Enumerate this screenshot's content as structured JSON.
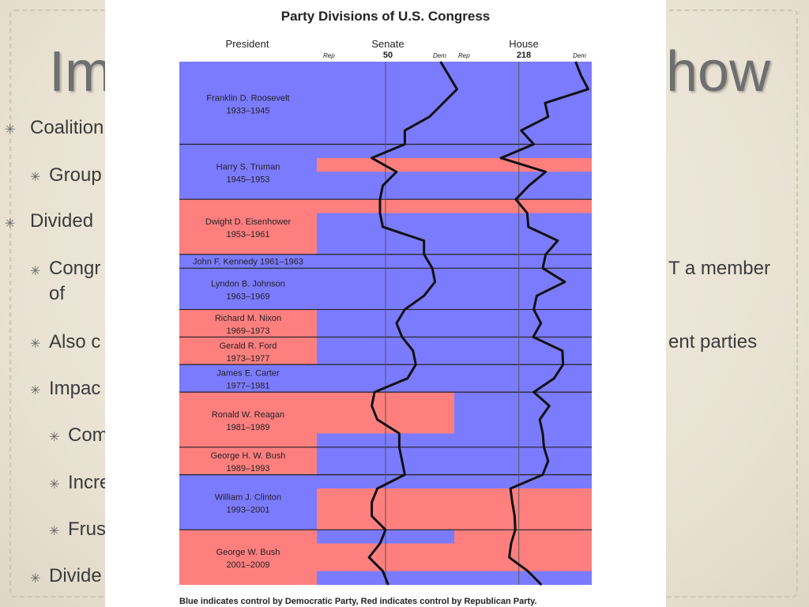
{
  "slide": {
    "title_left": "Im",
    "title_right": "how",
    "bullets": [
      {
        "text": "Coalition",
        "level": 1
      },
      {
        "text": "Group",
        "level": 2
      },
      {
        "text": "Divided",
        "level": 1
      },
      {
        "text": "Congr",
        "level": 2,
        "continuation": "of",
        "right_fragment": "T a member"
      },
      {
        "text": "Also c",
        "level": 2,
        "right_fragment": "ent parties"
      },
      {
        "text": "Impac",
        "level": 2
      },
      {
        "text": "Com",
        "level": 3
      },
      {
        "text": "Incre",
        "level": 3
      },
      {
        "text": "Frus",
        "level": 3
      },
      {
        "text": "Divide",
        "level": 2
      }
    ]
  },
  "chart_data": {
    "type": "table",
    "title": "Party Divisions of U.S. Congress",
    "headers": {
      "president": "President",
      "senate": "Senate",
      "house": "House",
      "senate_mid": "50",
      "house_mid": "218",
      "rep_label": "Rep",
      "dem_label": "Dem"
    },
    "colors": {
      "democratic": "#7b7bff",
      "republican": "#ff7f7f"
    },
    "presidents": [
      {
        "name": "Franklin D. Roosevelt",
        "years": "1933–1945",
        "party": "Dem"
      },
      {
        "name": "Harry S. Truman",
        "years": "1945–1953",
        "party": "Dem"
      },
      {
        "name": "Dwight D. Eisenhower",
        "years": "1953–1961",
        "party": "Rep"
      },
      {
        "name": "John F. Kennedy 1961–1963",
        "years": "",
        "party": "Dem"
      },
      {
        "name": "Lyndon B. Johnson",
        "years": "1963–1969",
        "party": "Dem"
      },
      {
        "name": "Richard M. Nixon",
        "years": "1969–1973",
        "party": "Rep"
      },
      {
        "name": "Gerald R. Ford",
        "years": "1973–1977",
        "party": "Rep"
      },
      {
        "name": "James E. Carter",
        "years": "1977–1981",
        "party": "Dem"
      },
      {
        "name": "Ronald W. Reagan",
        "years": "1981–1989",
        "party": "Rep"
      },
      {
        "name": "George H. W. Bush",
        "years": "1989–1993",
        "party": "Rep"
      },
      {
        "name": "William J. Clinton",
        "years": "1993–2001",
        "party": "Dem"
      },
      {
        "name": "George W. Bush",
        "years": "2001–2009",
        "party": "Rep"
      }
    ],
    "senate_control": [
      [
        "1933",
        "1947",
        "Dem"
      ],
      [
        "1947",
        "1949",
        "Rep"
      ],
      [
        "1949",
        "1953",
        "Dem"
      ],
      [
        "1953",
        "1955",
        "Rep"
      ],
      [
        "1955",
        "1981",
        "Dem"
      ],
      [
        "1981",
        "1987",
        "Rep"
      ],
      [
        "1987",
        "1995",
        "Dem"
      ],
      [
        "1995",
        "2001",
        "Rep"
      ],
      [
        "2001",
        "2003",
        "Dem"
      ],
      [
        "2003",
        "2007",
        "Rep"
      ],
      [
        "2007",
        "2009",
        "Dem"
      ]
    ],
    "house_control": [
      [
        "1933",
        "1947",
        "Dem"
      ],
      [
        "1947",
        "1949",
        "Rep"
      ],
      [
        "1949",
        "1953",
        "Dem"
      ],
      [
        "1953",
        "1955",
        "Rep"
      ],
      [
        "1955",
        "1995",
        "Dem"
      ],
      [
        "1995",
        "2007",
        "Rep"
      ],
      [
        "2007",
        "2009",
        "Dem"
      ]
    ],
    "senate_line": [
      [
        "1933",
        70
      ],
      [
        "1937",
        76
      ],
      [
        "1941",
        66
      ],
      [
        "1943",
        57
      ],
      [
        "1945",
        57
      ],
      [
        "1947",
        45
      ],
      [
        "1949",
        54
      ],
      [
        "1951",
        49
      ],
      [
        "1953",
        48
      ],
      [
        "1955",
        48
      ],
      [
        "1957",
        49
      ],
      [
        "1959",
        64
      ],
      [
        "1961",
        64
      ],
      [
        "1963",
        67
      ],
      [
        "1965",
        68
      ],
      [
        "1967",
        64
      ],
      [
        "1969",
        57
      ],
      [
        "1971",
        54
      ],
      [
        "1973",
        56
      ],
      [
        "1975",
        60
      ],
      [
        "1977",
        61
      ],
      [
        "1979",
        58
      ],
      [
        "1981",
        46
      ],
      [
        "1983",
        45
      ],
      [
        "1985",
        47
      ],
      [
        "1987",
        55
      ],
      [
        "1989",
        55
      ],
      [
        "1991",
        56
      ],
      [
        "1993",
        57
      ],
      [
        "1995",
        47
      ],
      [
        "1997",
        45
      ],
      [
        "1999",
        45
      ],
      [
        "2001",
        50
      ],
      [
        "2003",
        48
      ],
      [
        "2005",
        44
      ],
      [
        "2007",
        49
      ],
      [
        "2009",
        51
      ]
    ],
    "house_line": [
      [
        "1933",
        313
      ],
      [
        "1935",
        322
      ],
      [
        "1937",
        334
      ],
      [
        "1939",
        262
      ],
      [
        "1941",
        267
      ],
      [
        "1943",
        222
      ],
      [
        "1945",
        243
      ],
      [
        "1947",
        188
      ],
      [
        "1949",
        263
      ],
      [
        "1951",
        235
      ],
      [
        "1953",
        213
      ],
      [
        "1955",
        232
      ],
      [
        "1957",
        234
      ],
      [
        "1959",
        283
      ],
      [
        "1961",
        263
      ],
      [
        "1963",
        258
      ],
      [
        "1965",
        295
      ],
      [
        "1967",
        248
      ],
      [
        "1969",
        243
      ],
      [
        "1971",
        255
      ],
      [
        "1973",
        242
      ],
      [
        "1975",
        291
      ],
      [
        "1977",
        292
      ],
      [
        "1979",
        277
      ],
      [
        "1981",
        243
      ],
      [
        "1983",
        269
      ],
      [
        "1985",
        253
      ],
      [
        "1987",
        258
      ],
      [
        "1989",
        260
      ],
      [
        "1991",
        267
      ],
      [
        "1993",
        258
      ],
      [
        "1995",
        204
      ],
      [
        "1997",
        207
      ],
      [
        "1999",
        211
      ],
      [
        "2001",
        212
      ],
      [
        "2003",
        205
      ],
      [
        "2005",
        202
      ],
      [
        "2007",
        233
      ],
      [
        "2009",
        256
      ]
    ],
    "footnote": "Blue indicates control by Democratic Party, Red indicates control by Republican Party."
  }
}
